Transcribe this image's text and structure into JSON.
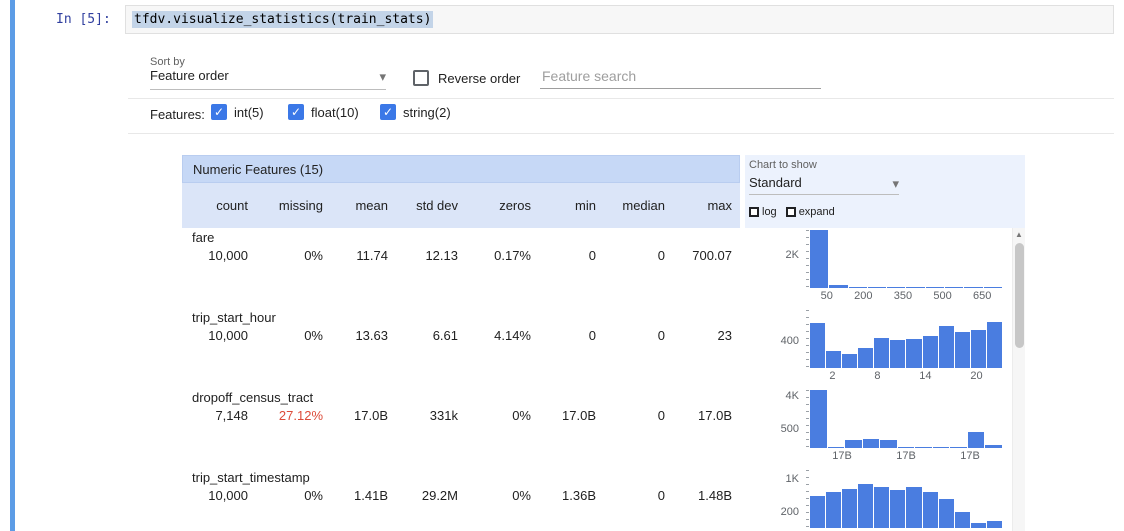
{
  "notebook": {
    "prompt": "In [5]:",
    "code": "tfdv.visualize_statistics(train_stats)"
  },
  "controls": {
    "sort_by_label": "Sort by",
    "sort_by_value": "Feature order",
    "reverse_order_label": "Reverse order",
    "reverse_order_checked": false,
    "search_placeholder": "Feature search",
    "features_label": "Features:",
    "feature_filters": [
      {
        "label": "int(5)",
        "checked": true
      },
      {
        "label": "float(10)",
        "checked": true
      },
      {
        "label": "string(2)",
        "checked": true
      }
    ]
  },
  "table": {
    "title": "Numeric Features (15)",
    "columns": [
      "count",
      "missing",
      "mean",
      "std dev",
      "zeros",
      "min",
      "median",
      "max"
    ],
    "rows": [
      {
        "name": "fare",
        "values": [
          "10,000",
          "0%",
          "11.74",
          "12.13",
          "0.17%",
          "0",
          "0",
          "700.07"
        ],
        "missing_alert": false
      },
      {
        "name": "trip_start_hour",
        "values": [
          "10,000",
          "0%",
          "13.63",
          "6.61",
          "4.14%",
          "0",
          "0",
          "23"
        ],
        "missing_alert": false
      },
      {
        "name": "dropoff_census_tract",
        "values": [
          "7,148",
          "27.12%",
          "17.0B",
          "331k",
          "0%",
          "17.0B",
          "0",
          "17.0B"
        ],
        "missing_alert": true
      },
      {
        "name": "trip_start_timestamp",
        "values": [
          "10,000",
          "0%",
          "1.41B",
          "29.2M",
          "0%",
          "1.36B",
          "0",
          "1.48B"
        ],
        "missing_alert": false
      }
    ]
  },
  "chart_controls": {
    "label": "Chart to show",
    "value": "Standard",
    "log_label": "log",
    "expand_label": "expand"
  },
  "chart_data": [
    {
      "type": "histogram",
      "feature": "fare",
      "y_labels": [
        {
          "text": "2K",
          "pos": 0.57
        }
      ],
      "x_ticks": [
        "50",
        "200",
        "350",
        "500",
        "650"
      ],
      "x_range": [
        0,
        700
      ],
      "bars": [
        1.0,
        0.055,
        0.02,
        0.012,
        0.008,
        0.006,
        0.005,
        0.004,
        0.003,
        0.003
      ]
    },
    {
      "type": "histogram",
      "feature": "trip_start_hour",
      "y_labels": [
        {
          "text": "400",
          "pos": 0.47
        }
      ],
      "x_ticks": [
        "2",
        "8",
        "14",
        "20"
      ],
      "x_range": [
        0,
        23
      ],
      "bars": [
        0.78,
        0.3,
        0.24,
        0.34,
        0.52,
        0.48,
        0.5,
        0.56,
        0.72,
        0.62,
        0.66,
        0.8
      ]
    },
    {
      "type": "histogram",
      "feature": "dropoff_census_tract",
      "y_labels": [
        {
          "text": "4K",
          "pos": 0.9
        },
        {
          "text": "500",
          "pos": 0.33
        }
      ],
      "x_ticks": [
        "17B",
        "17B",
        "17B"
      ],
      "x_range": null,
      "bars": [
        1.0,
        0.02,
        0.13,
        0.15,
        0.13,
        0.02,
        0.01,
        0.01,
        0.01,
        0.27,
        0.06
      ]
    },
    {
      "type": "histogram",
      "feature": "trip_start_timestamp",
      "y_labels": [
        {
          "text": "1K",
          "pos": 0.85
        },
        {
          "text": "200",
          "pos": 0.28
        }
      ],
      "x_ticks": [],
      "x_range": null,
      "bars": [
        0.55,
        0.62,
        0.68,
        0.75,
        0.7,
        0.65,
        0.7,
        0.62,
        0.5,
        0.28,
        0.08,
        0.12
      ]
    }
  ],
  "icons": {
    "dropdown_arrow": "▾",
    "checkmark": "✓",
    "scroll_up_arrow": "▲"
  },
  "colors": {
    "accent_blue": "#3b78e7",
    "histogram_bar": "#4a7de0",
    "missing_alert": "#dd4b39",
    "table_title_bg": "#c6d8f6",
    "table_header_bg": "#dbe5f8",
    "chart_panel_bg": "#ecf2fd",
    "prompt_blue": "#303f9f",
    "cell_bar_blue": "#5c9ce6",
    "code_highlight": "#c3d4e8"
  }
}
